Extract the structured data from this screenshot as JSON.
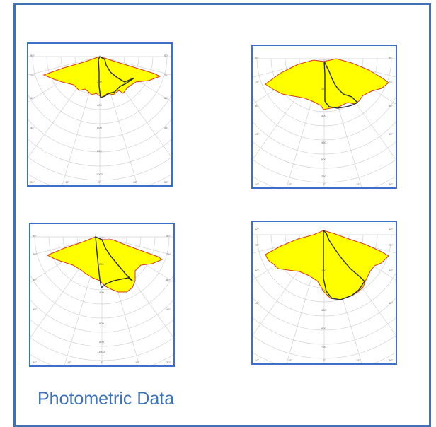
{
  "caption": "Photometric Data",
  "colors": {
    "frame": "#3d72b8",
    "panel_border": "#3c6fc8",
    "grid": "#d3d3d3",
    "fill": "#ffff00",
    "outline_red": "#d13b1e",
    "outline_dark": "#2c2f3a",
    "caption": "#3d72b8"
  },
  "diagrams": [
    {
      "name": "photometric-diagram-1",
      "angle_labels_left": [
        "90°",
        "75°",
        "60°",
        "45°",
        "30°"
      ],
      "angle_labels_right": [
        "90°",
        "75°",
        "60°",
        "45°",
        "30°"
      ],
      "angle_labels_bottom": [
        "15°",
        "0°",
        "15°"
      ],
      "radial_labels": [
        "200",
        "400",
        "600",
        "800",
        "1000"
      ]
    },
    {
      "name": "photometric-diagram-2",
      "angle_labels_left": [
        "90°",
        "75°",
        "60°",
        "45°",
        "30°"
      ],
      "angle_labels_right": [
        "90°",
        "75°",
        "60°",
        "45°",
        "30°"
      ],
      "angle_labels_bottom": [
        "15°",
        "0°",
        "15°"
      ],
      "radial_labels": [
        "150",
        "300",
        "450",
        "600",
        "750"
      ]
    },
    {
      "name": "photometric-diagram-3",
      "angle_labels_left": [
        "90°",
        "75°",
        "60°",
        "45°",
        "30°"
      ],
      "angle_labels_right": [
        "90°",
        "75°",
        "60°",
        "45°",
        "30°"
      ],
      "angle_labels_bottom": [
        "15°",
        "0°",
        "15°"
      ],
      "radial_labels": [
        "200",
        "400",
        "600",
        "800",
        "1000"
      ]
    },
    {
      "name": "photometric-diagram-4",
      "angle_labels_left": [
        "90°",
        "75°",
        "60°",
        "45°",
        "30°"
      ],
      "angle_labels_right": [
        "90°",
        "75°",
        "60°",
        "45°",
        "30°"
      ],
      "angle_labels_bottom": [
        "15°",
        "0°",
        "15°"
      ],
      "radial_labels": [
        "150",
        "300",
        "450",
        "600",
        "750"
      ]
    }
  ]
}
